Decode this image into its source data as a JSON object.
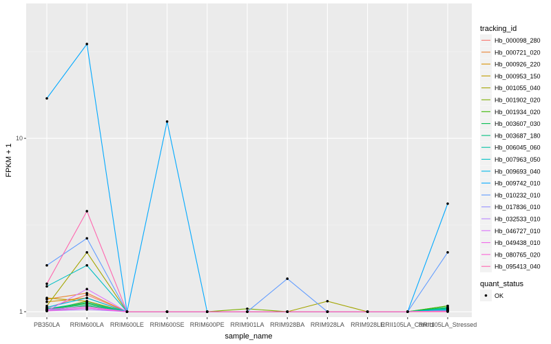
{
  "chart_data": {
    "type": "line",
    "x_label": "sample_name",
    "y_label": "FPKM + 1",
    "y_scale": "log10",
    "y_range": [
      0.93,
      60
    ],
    "y_ticks": [
      {
        "value": 1,
        "label": "1"
      },
      {
        "value": 10,
        "label": "10"
      }
    ],
    "categories": [
      "PB350LA",
      "RRIM600LA",
      "RRIM600LE",
      "RRIM600SE",
      "RRIM600PE",
      "RRIM901LA",
      "RRIM928BA",
      "RRIM928LA",
      "RRIM928LE",
      "RRII105LA_Control",
      "RRII105LA_Stressed"
    ],
    "grid": true,
    "legend_position": "right",
    "legend_title": "tracking_id",
    "series": [
      {
        "name": "Hb_000098_280",
        "color": "#F8766D",
        "values": [
          1.05,
          1.25,
          1,
          1,
          1,
          1,
          1,
          1,
          1,
          1,
          1.02
        ]
      },
      {
        "name": "Hb_000721_020",
        "color": "#EA8331",
        "values": [
          1.18,
          1.28,
          1,
          1,
          1,
          1,
          1,
          1,
          1,
          1,
          1.03
        ]
      },
      {
        "name": "Hb_000926_220",
        "color": "#D89000",
        "values": [
          1.14,
          1.2,
          1,
          1,
          1,
          1,
          1,
          1,
          1,
          1,
          1.02
        ]
      },
      {
        "name": "Hb_000953_150",
        "color": "#C09B00",
        "values": [
          1.2,
          1.15,
          1,
          1,
          1,
          1,
          1,
          1,
          1,
          1,
          1.04
        ]
      },
      {
        "name": "Hb_001055_040",
        "color": "#A3A500",
        "values": [
          1.08,
          2.2,
          1,
          1,
          1,
          1,
          1,
          1.15,
          1,
          1,
          1.05
        ]
      },
      {
        "name": "Hb_001902_020",
        "color": "#7CAE00",
        "values": [
          1.02,
          1.15,
          1,
          1,
          1,
          1.04,
          1,
          1,
          1,
          1,
          1.08
        ]
      },
      {
        "name": "Hb_001934_020",
        "color": "#39B600",
        "values": [
          1.03,
          1.12,
          1,
          1,
          1,
          1,
          1,
          1,
          1,
          1,
          1.08
        ]
      },
      {
        "name": "Hb_003607_030",
        "color": "#00BB4E",
        "values": [
          1.02,
          1.08,
          1,
          1,
          1,
          1,
          1,
          1,
          1,
          1,
          1.06
        ]
      },
      {
        "name": "Hb_003687_180",
        "color": "#00BF7D",
        "values": [
          1.03,
          1.1,
          1,
          1,
          1,
          1,
          1,
          1,
          1,
          1,
          1.05
        ]
      },
      {
        "name": "Hb_006045_060",
        "color": "#00C1A3",
        "values": [
          1.04,
          1.13,
          1,
          1,
          1,
          1,
          1,
          1,
          1,
          1,
          1.04
        ]
      },
      {
        "name": "Hb_007963_050",
        "color": "#00BFC4",
        "values": [
          1.4,
          1.85,
          1,
          1,
          1,
          1,
          1,
          1,
          1,
          1,
          1.03
        ]
      },
      {
        "name": "Hb_009693_040",
        "color": "#00B8E7",
        "values": [
          1.06,
          1.2,
          1,
          1,
          1,
          1,
          1,
          1,
          1,
          1,
          1.02
        ]
      },
      {
        "name": "Hb_009742_010",
        "color": "#00A9FF",
        "values": [
          17,
          35,
          1,
          12.5,
          1,
          1,
          1,
          1,
          1,
          1,
          4.2
        ]
      },
      {
        "name": "Hb_010232_010",
        "color": "#619CFF",
        "values": [
          1.85,
          2.65,
          1,
          1,
          1,
          1,
          1.55,
          1,
          1,
          1,
          2.2
        ]
      },
      {
        "name": "Hb_017836_010",
        "color": "#9590FF",
        "values": [
          1.02,
          1.05,
          1,
          1,
          1,
          1,
          1,
          1,
          1,
          1,
          1.01
        ]
      },
      {
        "name": "Hb_032533_010",
        "color": "#B983FF",
        "values": [
          1.01,
          1.03,
          1,
          1,
          1,
          1,
          1,
          1,
          1,
          1,
          1.01
        ]
      },
      {
        "name": "Hb_046727_010",
        "color": "#DB72FB",
        "values": [
          1.01,
          1.35,
          1,
          1,
          1,
          1,
          1,
          1,
          1,
          1,
          1.01
        ]
      },
      {
        "name": "Hb_049438_010",
        "color": "#F066EA",
        "values": [
          1.03,
          1.07,
          1,
          1,
          1,
          1,
          1,
          1,
          1,
          1,
          1.01
        ]
      },
      {
        "name": "Hb_080765_020",
        "color": "#FC61D5",
        "values": [
          1.01,
          1.05,
          1,
          1,
          1,
          1,
          1,
          1,
          1,
          1,
          1.01
        ]
      },
      {
        "name": "Hb_095413_040",
        "color": "#FF65AE",
        "values": [
          1.45,
          3.8,
          1,
          1,
          1,
          1,
          1,
          1,
          1,
          1,
          1.0
        ]
      }
    ],
    "shape_legend": {
      "title": "quant_status",
      "entries": [
        "OK"
      ]
    }
  }
}
